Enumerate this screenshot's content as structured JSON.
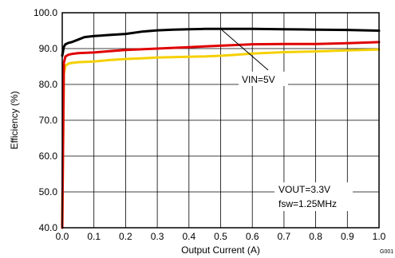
{
  "chart_data": {
    "type": "line",
    "xlabel": "Output Current (A)",
    "ylabel": "Efficiency (%)",
    "xlim": [
      0,
      1.0
    ],
    "ylim": [
      40,
      100
    ],
    "x_ticks": [
      "0.0",
      "0.1",
      "0.2",
      "0.3",
      "0.4",
      "0.5",
      "0.6",
      "0.7",
      "0.8",
      "0.9",
      "1.0"
    ],
    "y_ticks": [
      "40.0",
      "50.0",
      "60.0",
      "70.0",
      "80.0",
      "90.0",
      "100.0"
    ],
    "grid": true,
    "series": [
      {
        "color": "#000000",
        "x": [
          0.0,
          0.005,
          0.01,
          0.02,
          0.03,
          0.05,
          0.07,
          0.1,
          0.15,
          0.2,
          0.25,
          0.3,
          0.35,
          0.4,
          0.45,
          0.5,
          0.6,
          0.7,
          0.8,
          0.9,
          1.0
        ],
        "y": [
          88.0,
          90.5,
          91.2,
          91.6,
          91.8,
          92.5,
          93.2,
          93.5,
          93.8,
          94.1,
          94.7,
          95.1,
          95.3,
          95.4,
          95.5,
          95.5,
          95.5,
          95.4,
          95.3,
          95.2,
          95.0
        ]
      },
      {
        "color": "#e00000",
        "x": [
          0.0,
          0.005,
          0.01,
          0.02,
          0.03,
          0.05,
          0.07,
          0.1,
          0.15,
          0.2,
          0.25,
          0.3,
          0.35,
          0.4,
          0.45,
          0.5,
          0.55,
          0.6,
          0.7,
          0.8,
          0.9,
          1.0
        ],
        "y": [
          40.0,
          86.0,
          87.8,
          88.3,
          88.5,
          88.7,
          88.8,
          88.9,
          89.3,
          89.6,
          89.8,
          90.0,
          90.2,
          90.4,
          90.6,
          90.8,
          91.0,
          91.2,
          91.3,
          91.3,
          91.5,
          91.8
        ]
      },
      {
        "color": "#f5d000",
        "x": [
          0.0,
          0.005,
          0.01,
          0.02,
          0.03,
          0.05,
          0.07,
          0.1,
          0.15,
          0.2,
          0.25,
          0.3,
          0.35,
          0.4,
          0.45,
          0.5,
          0.55,
          0.6,
          0.7,
          0.8,
          0.9,
          1.0
        ],
        "y": [
          40.0,
          83.0,
          85.2,
          85.8,
          86.0,
          86.2,
          86.3,
          86.4,
          86.8,
          87.1,
          87.3,
          87.5,
          87.6,
          87.7,
          87.8,
          88.0,
          88.3,
          88.6,
          89.0,
          89.2,
          89.5,
          89.7
        ]
      }
    ],
    "annotations": [
      {
        "text": "VIN=5V",
        "target_series": 0,
        "target_x": 0.5
      },
      {
        "text": "VOUT=3.3V"
      },
      {
        "text": "fsw=1.25MHz"
      }
    ],
    "figure_code": "G001"
  }
}
